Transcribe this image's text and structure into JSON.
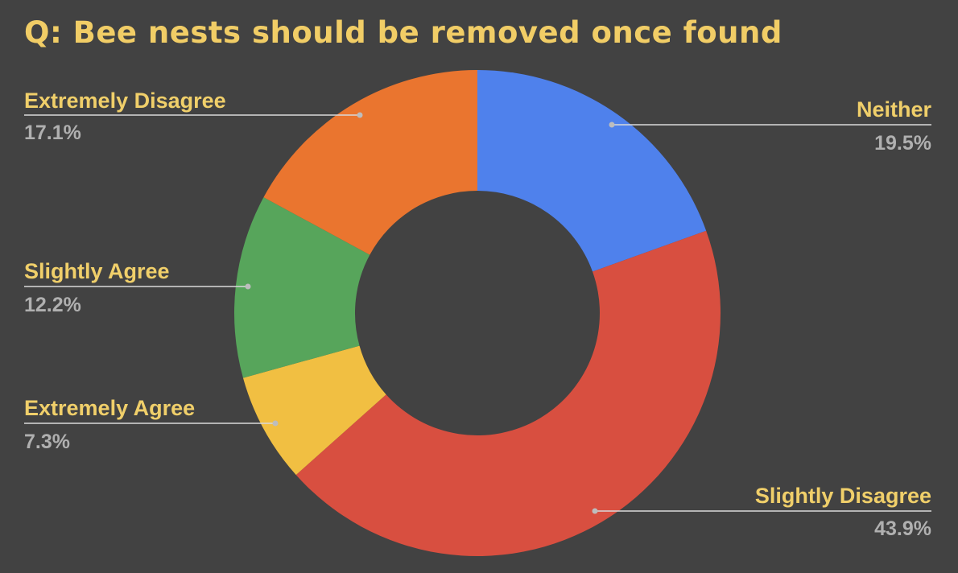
{
  "chart_data": {
    "type": "pie",
    "donut": true,
    "title": "Q: Bee nests should be removed once found",
    "slices": [
      {
        "label": "Neither",
        "percent_label": "19.5%",
        "value": 19.5,
        "color": "#4f81ec"
      },
      {
        "label": "Slightly Disagree",
        "percent_label": "43.9%",
        "value": 43.9,
        "color": "#d84f40"
      },
      {
        "label": "Extremely Agree",
        "percent_label": "7.3%",
        "value": 7.3,
        "color": "#f1bf42"
      },
      {
        "label": "Slightly Agree",
        "percent_label": "12.2%",
        "value": 12.2,
        "color": "#57a55b"
      },
      {
        "label": "Extremely Disagree",
        "percent_label": "17.1%",
        "value": 17.1,
        "color": "#ea752f"
      }
    ],
    "colors": {
      "background": "#424242",
      "title": "#f1cd66",
      "label": "#f0cf6a",
      "percent": "#b0b0b0",
      "leader": "#d9d9d9"
    }
  }
}
